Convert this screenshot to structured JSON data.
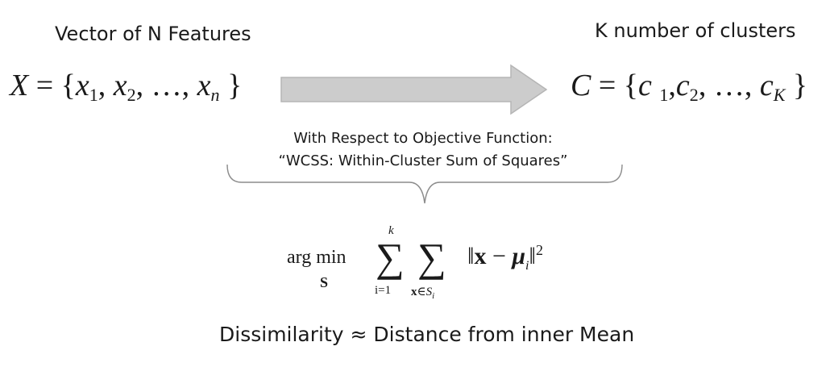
{
  "input": {
    "label": "Vector of  N Features",
    "set_lhs": "X",
    "set_eq": "= {",
    "items": [
      {
        "base": "x",
        "sub": "1"
      },
      {
        "base": "x",
        "sub": "2"
      },
      {
        "base": "x",
        "sub": "n"
      }
    ],
    "sep": ",",
    "ellipsis": "…",
    "close": "}"
  },
  "output": {
    "label": "K number of clusters",
    "set_lhs": "C",
    "set_eq": "= {",
    "items": [
      {
        "base": "c",
        "sub": "1"
      },
      {
        "base": "c",
        "sub": "2"
      },
      {
        "base": "c",
        "sub": "K"
      }
    ],
    "sep": ",",
    "ellipsis": "…",
    "close": "}"
  },
  "objective": {
    "line1": "With Respect to Objective Function:",
    "line2": "“WCSS: Within-Cluster Sum of Squares”"
  },
  "formula": {
    "argmin": "arg min",
    "argmin_sub": "S",
    "sum1_upper": "k",
    "sum1_lower": "i=1",
    "sum2_lower_var": "x",
    "sum2_lower_rel": "∈S",
    "sum2_lower_idx": "i",
    "sigma": "∑",
    "norm_open": "‖",
    "x": "x",
    "minus": "−",
    "mu": "μ",
    "mu_sub": "i",
    "norm_close": "‖",
    "power": "2"
  },
  "bottom_text": "Dissimilarity ≈ Distance from inner Mean",
  "colors": {
    "arrow_fill": "#cccccc",
    "arrow_stroke": "#b5b5b5",
    "bracket": "#8c8c8c",
    "text": "#1a1a1a"
  }
}
